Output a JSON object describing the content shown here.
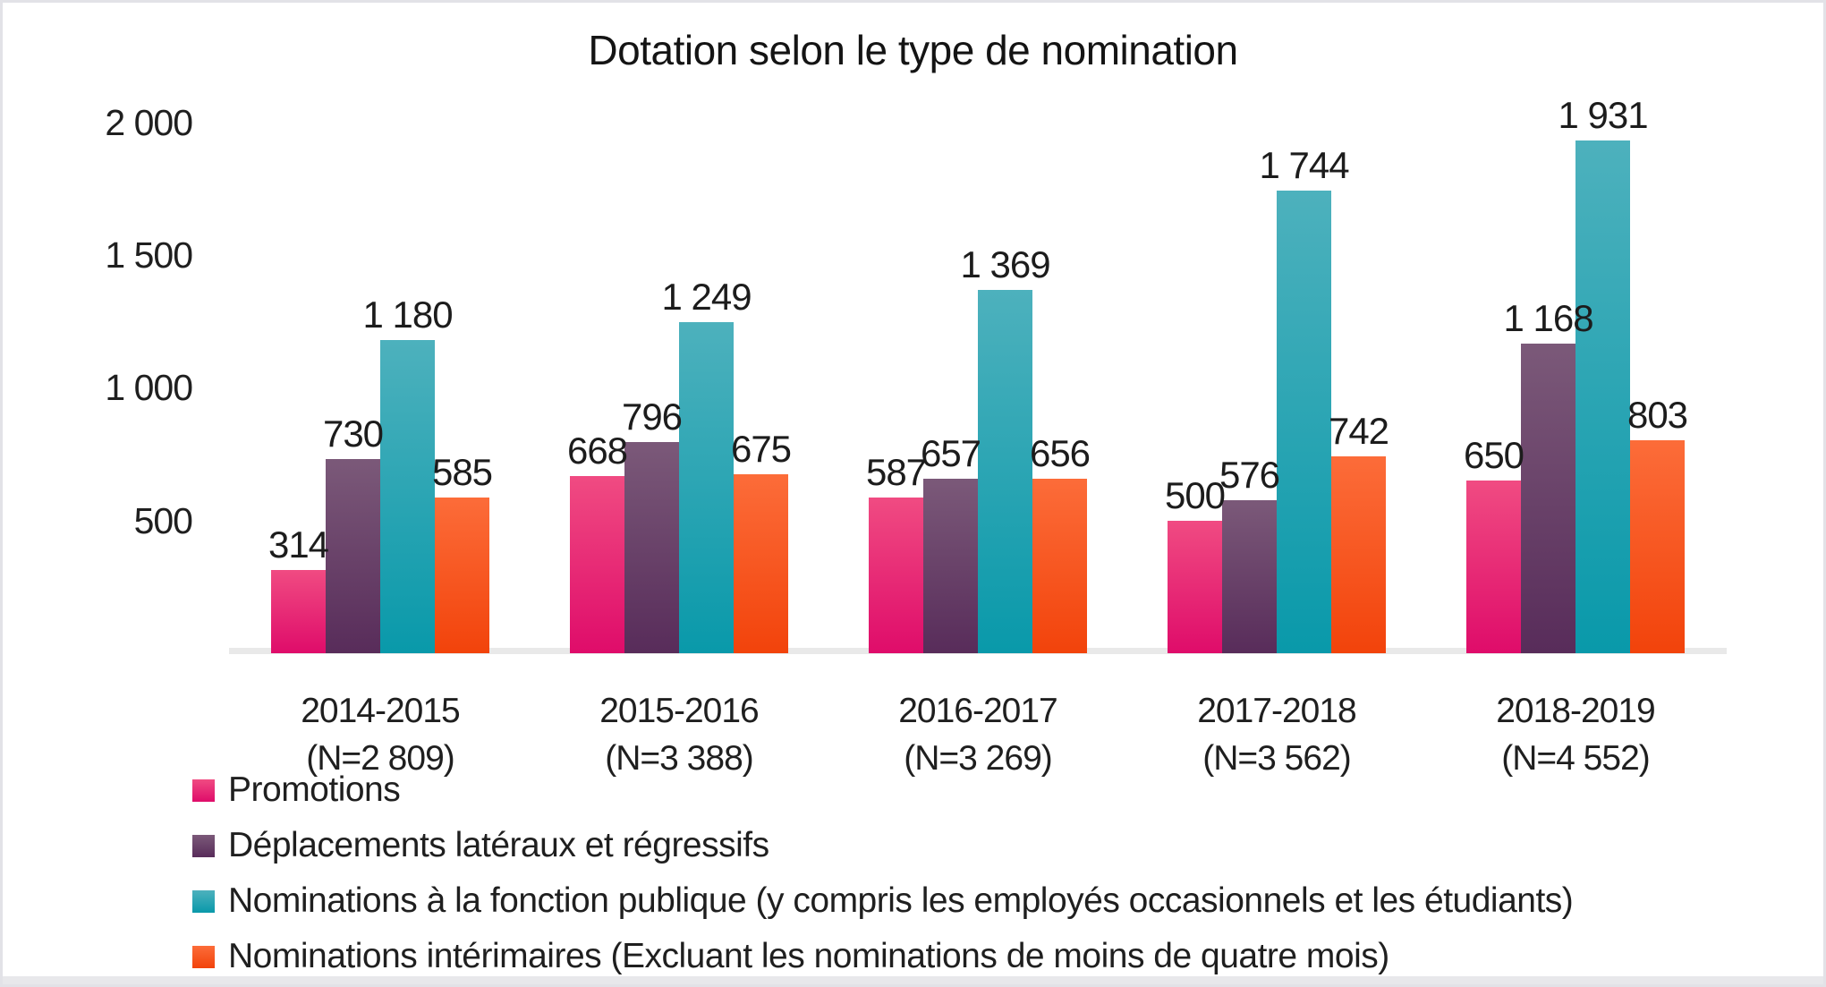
{
  "page": {
    "background_color": "#FFFFFF",
    "frame_border_color": "#E2E2E7"
  },
  "chart_data": {
    "type": "bar",
    "title": "Dotation selon le type de nomination",
    "categories": [
      "2014-2015",
      "2015-2016",
      "2016-2017",
      "2017-2018",
      "2018-2019"
    ],
    "category_sublabels": [
      "(N=2 809)",
      "(N=3 388)",
      "(N=3 269)",
      "(N=3 562)",
      "(N=4 552)"
    ],
    "series": [
      {
        "name": "Promotions",
        "color_top": "#F04B82",
        "color_bottom": "#DF0C6A",
        "values": [
          314,
          668,
          587,
          500,
          650
        ],
        "labels": [
          "314",
          "668",
          "587",
          "500",
          "650"
        ]
      },
      {
        "name": "Déplacements latéraux et régressifs",
        "color_top": "#7B5979",
        "color_bottom": "#582C5A",
        "values": [
          730,
          796,
          657,
          576,
          1168
        ],
        "labels": [
          "730",
          "796",
          "657",
          "576",
          "1 168"
        ]
      },
      {
        "name": "Nominations à la fonction publique (y compris les employés occasionnels et les étudiants)",
        "color_top": "#4DB1BD",
        "color_bottom": "#0999AA",
        "values": [
          1180,
          1249,
          1369,
          1744,
          1931
        ],
        "labels": [
          "1 180",
          "1 249",
          "1 369",
          "1 744",
          "1 931"
        ]
      },
      {
        "name": "Nominations intérimaires (Excluant les nominations de moins de quatre mois)",
        "color_top": "#FC6C39",
        "color_bottom": "#F2430B",
        "values": [
          585,
          675,
          656,
          742,
          803
        ],
        "labels": [
          "585",
          "675",
          "656",
          "742",
          "803"
        ]
      }
    ],
    "y_axis": {
      "tick_labels": [
        "500",
        "1 000",
        "1 500",
        "2 000"
      ],
      "tick_values": [
        500,
        1000,
        1500,
        2000
      ],
      "min": 0,
      "max": 2000,
      "grid": false
    },
    "legend_position": "bottom-left"
  }
}
